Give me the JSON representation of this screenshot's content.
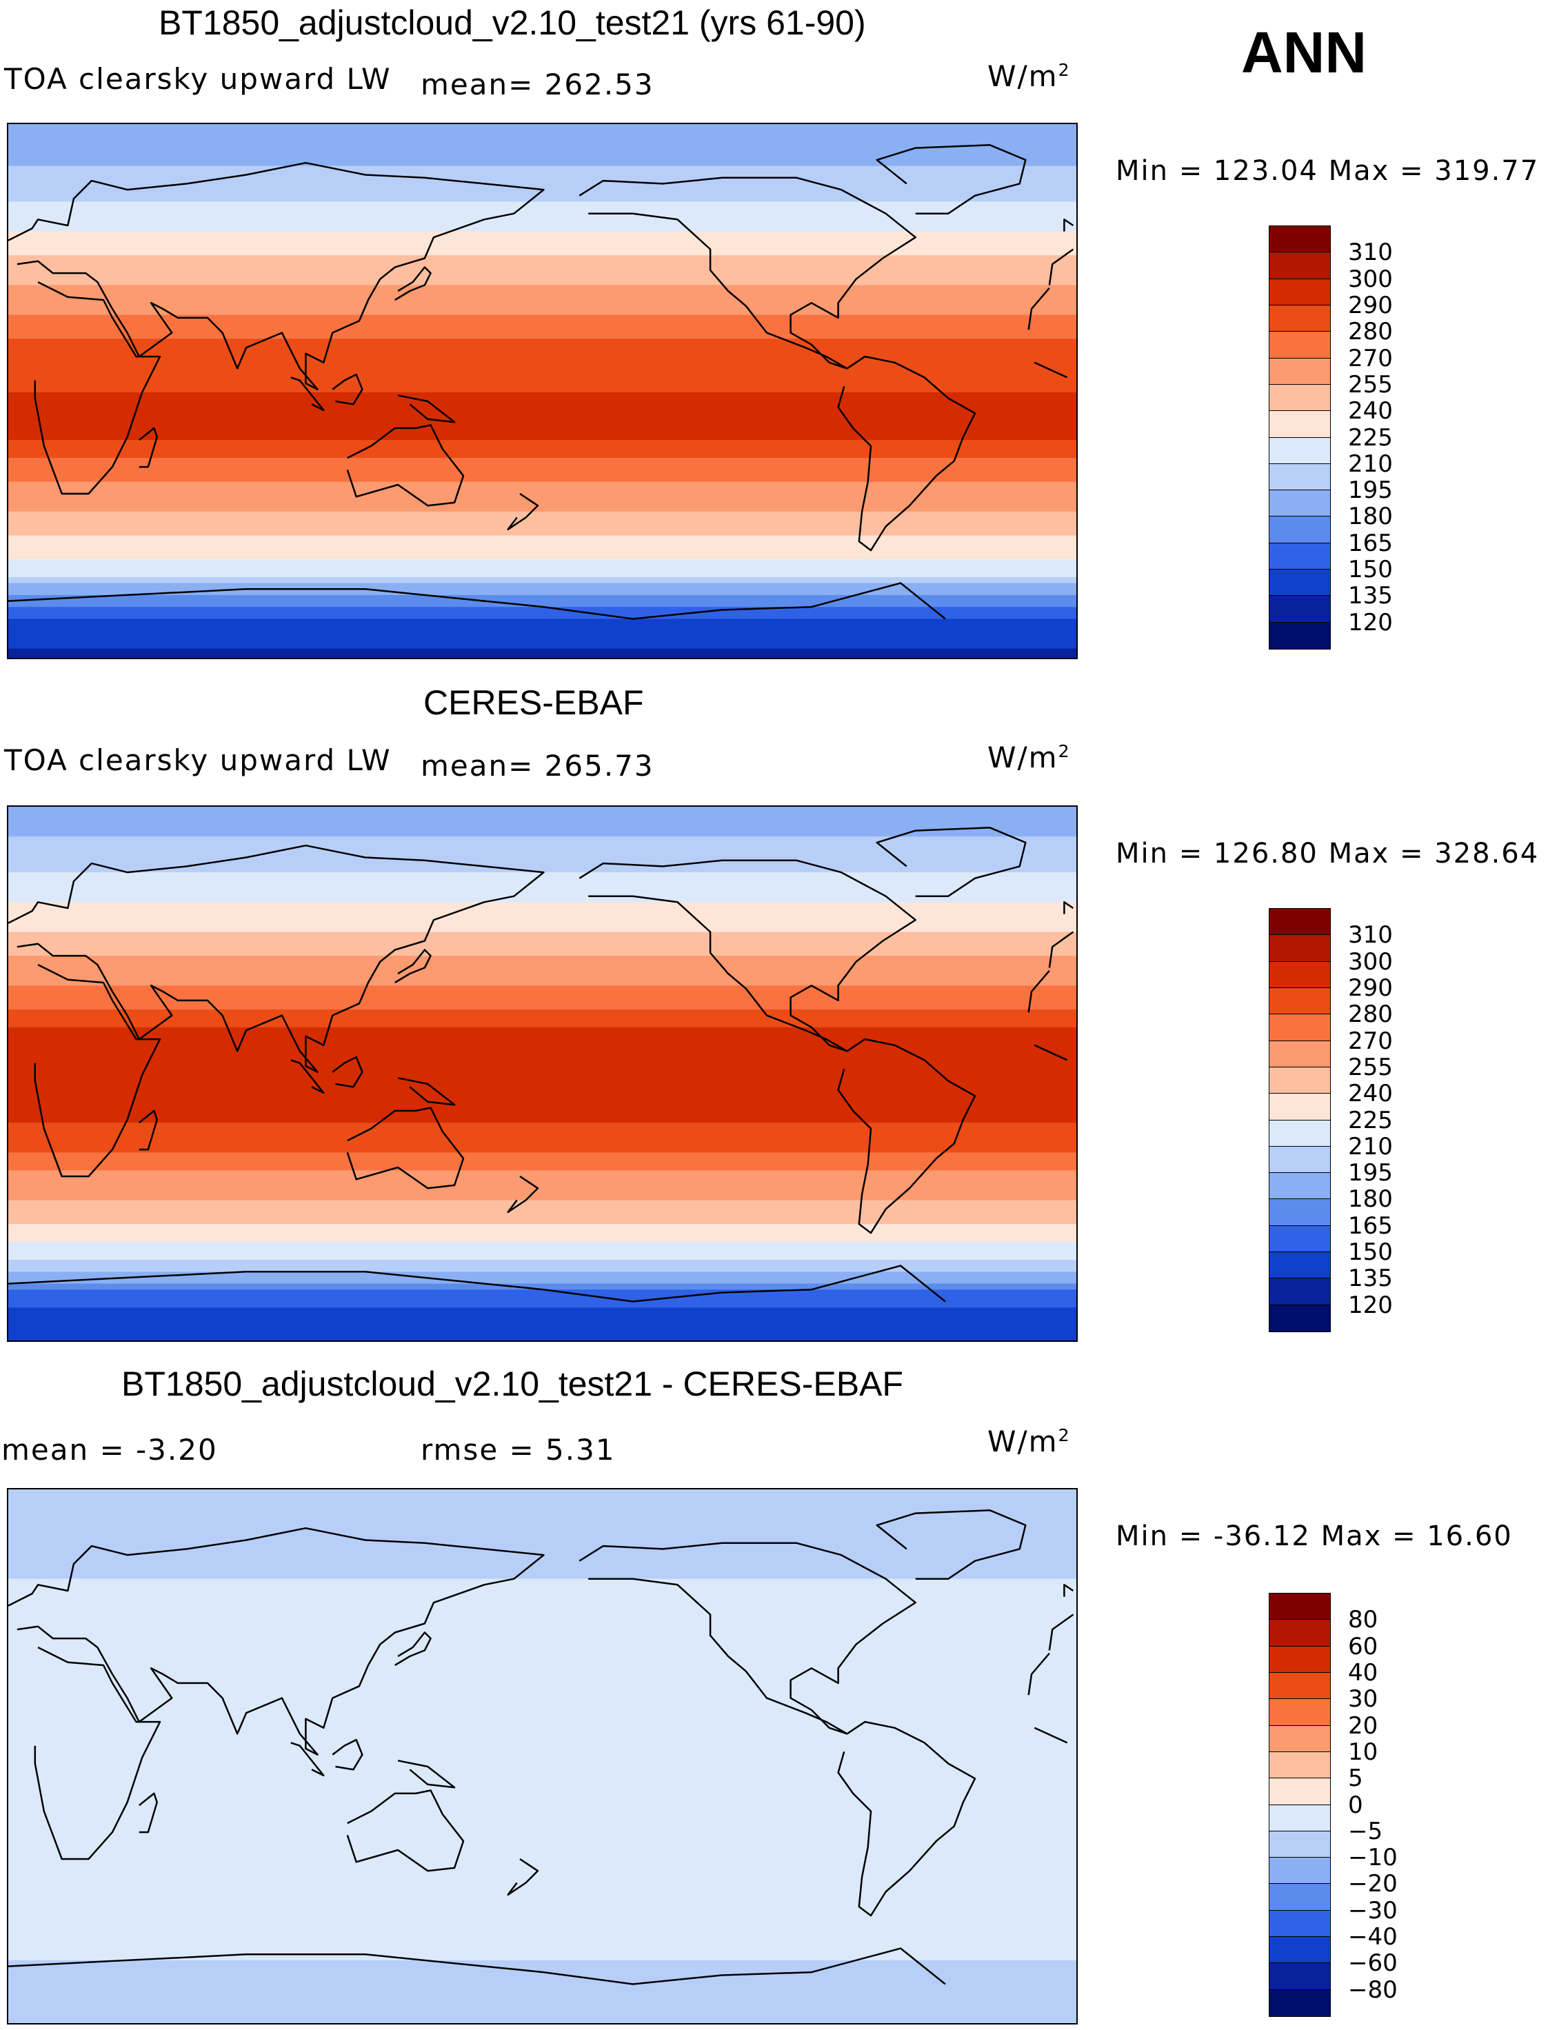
{
  "season": "ANN",
  "panels": [
    {
      "title": "BT1850_adjustcloud_v2.10_test21 (yrs 61-90)",
      "left_label": "TOA clearsky upward LW",
      "stat_text": "mean= 262.53",
      "units": "W/m",
      "units_sup": "2",
      "minmax": "Min = 123.04 Max = 319.77"
    },
    {
      "title": "CERES-EBAF",
      "left_label": "TOA clearsky upward LW",
      "stat_text": "mean= 265.73",
      "units": "W/m",
      "units_sup": "2",
      "minmax": "Min = 126.80 Max = 328.64"
    },
    {
      "title": "BT1850_adjustcloud_v2.10_test21 - CERES-EBAF",
      "left_label": "mean =   -3.20",
      "stat_text": "rmse =    5.31",
      "units": "W/m",
      "units_sup": "2",
      "minmax": "Min = -36.12 Max =  16.60"
    }
  ],
  "chart_data": [
    {
      "type": "heatmap",
      "title": "BT1850_adjustcloud_v2.10_test21 (yrs 61-90)",
      "variable": "TOA clearsky upward LW",
      "units": "W/m2",
      "mean": 262.53,
      "min": 123.04,
      "max": 319.77,
      "zonal_profile": [
        {
          "lat": 90,
          "value": 180
        },
        {
          "lat": 75,
          "value": 195
        },
        {
          "lat": 60,
          "value": 215
        },
        {
          "lat": 45,
          "value": 240
        },
        {
          "lat": 30,
          "value": 265
        },
        {
          "lat": 15,
          "value": 285
        },
        {
          "lat": 0,
          "value": 290
        },
        {
          "lat": -15,
          "value": 290
        },
        {
          "lat": -30,
          "value": 270
        },
        {
          "lat": -45,
          "value": 245
        },
        {
          "lat": -60,
          "value": 215
        },
        {
          "lat": -75,
          "value": 150
        },
        {
          "lat": -90,
          "value": 130
        }
      ],
      "colorbar": {
        "levels": [
          "310",
          "300",
          "290",
          "280",
          "270",
          "255",
          "240",
          "225",
          "210",
          "195",
          "180",
          "165",
          "150",
          "135",
          "120"
        ],
        "colors": [
          "#800000",
          "#b31700",
          "#d42c00",
          "#ec4d16",
          "#f97341",
          "#fc9a70",
          "#fdbfa0",
          "#fde6d8",
          "#dbe9fb",
          "#b7cff8",
          "#8aaff3",
          "#5b8ced",
          "#2f62e6",
          "#1140cc",
          "#07229a",
          "#000e6b"
        ]
      }
    },
    {
      "type": "heatmap",
      "title": "CERES-EBAF",
      "variable": "TOA clearsky upward LW",
      "units": "W/m2",
      "mean": 265.73,
      "min": 126.8,
      "max": 328.64,
      "zonal_profile": [
        {
          "lat": 90,
          "value": 185
        },
        {
          "lat": 75,
          "value": 200
        },
        {
          "lat": 60,
          "value": 220
        },
        {
          "lat": 45,
          "value": 245
        },
        {
          "lat": 30,
          "value": 270
        },
        {
          "lat": 15,
          "value": 290
        },
        {
          "lat": 0,
          "value": 292
        },
        {
          "lat": -15,
          "value": 292
        },
        {
          "lat": -30,
          "value": 275
        },
        {
          "lat": -45,
          "value": 248
        },
        {
          "lat": -60,
          "value": 218
        },
        {
          "lat": -75,
          "value": 155
        },
        {
          "lat": -90,
          "value": 135
        }
      ],
      "colorbar": {
        "levels": [
          "310",
          "300",
          "290",
          "280",
          "270",
          "255",
          "240",
          "225",
          "210",
          "195",
          "180",
          "165",
          "150",
          "135",
          "120"
        ],
        "colors": [
          "#800000",
          "#b31700",
          "#d42c00",
          "#ec4d16",
          "#f97341",
          "#fc9a70",
          "#fdbfa0",
          "#fde6d8",
          "#dbe9fb",
          "#b7cff8",
          "#8aaff3",
          "#5b8ced",
          "#2f62e6",
          "#1140cc",
          "#07229a",
          "#000e6b"
        ]
      }
    },
    {
      "type": "heatmap",
      "title": "BT1850_adjustcloud_v2.10_test21 - CERES-EBAF",
      "units": "W/m2",
      "mean": -3.2,
      "rmse": 5.31,
      "min": -36.12,
      "max": 16.6,
      "zonal_profile": [
        {
          "lat": 90,
          "value": -7
        },
        {
          "lat": 75,
          "value": -6
        },
        {
          "lat": 60,
          "value": -5
        },
        {
          "lat": 45,
          "value": -3
        },
        {
          "lat": 30,
          "value": -3
        },
        {
          "lat": 15,
          "value": -4
        },
        {
          "lat": 0,
          "value": -1
        },
        {
          "lat": -15,
          "value": -3
        },
        {
          "lat": -30,
          "value": -4
        },
        {
          "lat": -45,
          "value": -3
        },
        {
          "lat": -60,
          "value": -4
        },
        {
          "lat": -75,
          "value": -6
        },
        {
          "lat": -90,
          "value": -7
        }
      ],
      "colorbar": {
        "levels": [
          "80",
          "60",
          "40",
          "30",
          "20",
          "10",
          "5",
          "0",
          "−5",
          "−10",
          "−20",
          "−30",
          "−40",
          "−60",
          "−80"
        ],
        "colors": [
          "#800000",
          "#b31700",
          "#d42c00",
          "#ec4d16",
          "#f97341",
          "#fc9a70",
          "#fdbfa0",
          "#fde6d8",
          "#dbe9fb",
          "#b7cff8",
          "#8aaff3",
          "#5b8ced",
          "#2f62e6",
          "#1140cc",
          "#07229a",
          "#000e6b"
        ]
      }
    }
  ]
}
